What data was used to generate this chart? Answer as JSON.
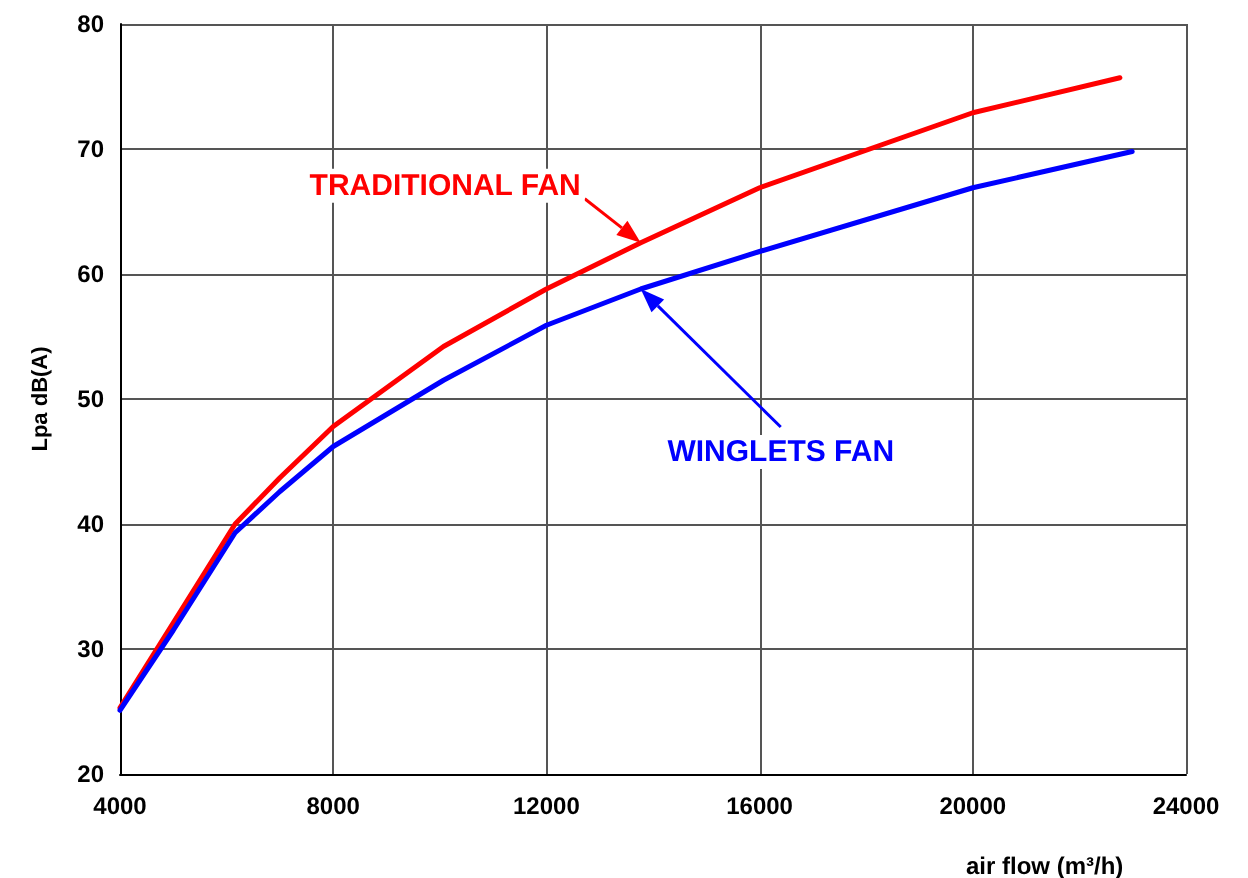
{
  "chart_data": {
    "type": "line",
    "xlabel": "air flow (m³/h)",
    "ylabel": "Lpa dB(A)",
    "xlim": [
      4000,
      24000
    ],
    "xticks": [
      4000,
      8000,
      12000,
      16000,
      20000,
      24000
    ],
    "ylim": [
      20,
      80
    ],
    "yticks": [
      20,
      30,
      40,
      50,
      60,
      70,
      80
    ],
    "grid": true,
    "marker": "none",
    "line_style": "solid",
    "series": [
      {
        "name": "TRADITIONAL FAN",
        "color": "#ff0000",
        "x": [
          4000,
          5000,
          6160,
          7000,
          8000,
          10070,
          12000,
          13770,
          16000,
          20000,
          22760
        ],
        "values": [
          25.3,
          32.1,
          40,
          43.7,
          47.8,
          54.2,
          58.8,
          62.5,
          66.9,
          72.9,
          75.7
        ]
      },
      {
        "name": "WINGLETS FAN",
        "color": "#0000ff",
        "x": [
          4000,
          5000,
          6160,
          7000,
          8000,
          10070,
          12000,
          13770,
          16000,
          20000,
          22990
        ],
        "values": [
          25.1,
          31.5,
          39.3,
          42.6,
          46.2,
          51.5,
          55.9,
          58.8,
          61.8,
          66.9,
          69.8
        ]
      }
    ]
  }
}
